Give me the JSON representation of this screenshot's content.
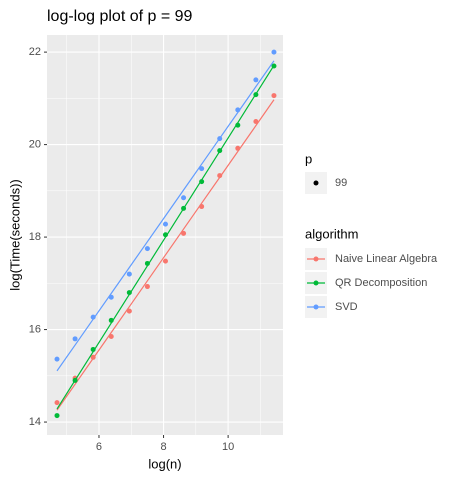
{
  "chart_data": {
    "type": "scatter",
    "title": "log-log plot of p = 99",
    "x_label": "log(n)",
    "y_label": "log(Time(seconds))",
    "x": [
      4.7,
      5.26,
      5.82,
      6.38,
      6.94,
      7.5,
      8.06,
      8.62,
      9.18,
      9.74,
      10.3,
      10.86,
      11.42
    ],
    "series": [
      {
        "name": "Naive Linear Algebra",
        "color": "#F8766D",
        "values": [
          14.42,
          14.95,
          15.4,
          15.85,
          16.4,
          16.93,
          17.48,
          18.08,
          18.66,
          19.33,
          19.92,
          20.5,
          21.06
        ]
      },
      {
        "name": "QR Decomposition",
        "color": "#00BA38",
        "values": [
          14.14,
          14.9,
          15.57,
          16.2,
          16.8,
          17.43,
          18.05,
          18.62,
          19.2,
          19.87,
          20.42,
          21.08,
          21.7
        ]
      },
      {
        "name": "SVD",
        "color": "#619CFF",
        "values": [
          15.36,
          15.8,
          16.27,
          16.7,
          17.2,
          17.75,
          18.28,
          18.85,
          19.48,
          20.13,
          20.75,
          21.4,
          22.0
        ]
      }
    ],
    "xlim": [
      4.39,
      11.7
    ],
    "xticks": [
      6,
      8,
      10
    ],
    "minor_xticks": [
      5,
      7,
      9,
      11
    ],
    "ylim": [
      13.72,
      22.37
    ],
    "yticks": [
      14,
      16,
      18,
      20,
      22
    ],
    "minor_yticks": [
      15,
      17,
      19,
      21
    ],
    "grid": true,
    "p_legend": {
      "title": "p",
      "entries": [
        "99"
      ]
    },
    "legend_title": "algorithm"
  }
}
